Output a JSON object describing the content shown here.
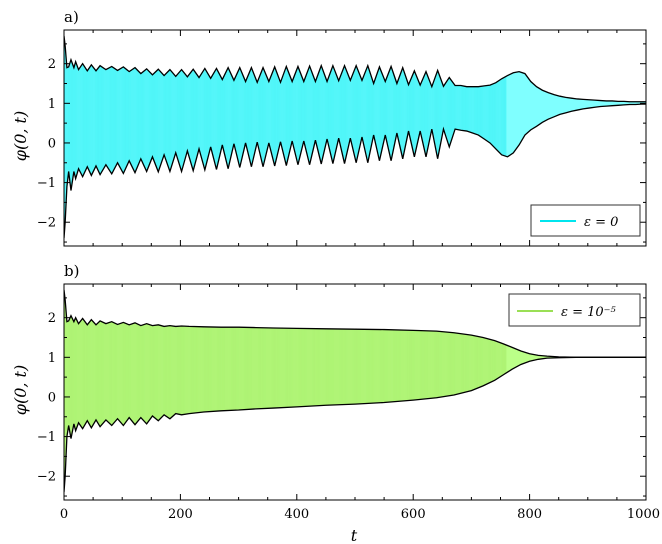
{
  "chart_data": [
    {
      "type": "area",
      "panel_label": "a)",
      "xlabel": "",
      "ylabel": "φ(0, t)",
      "xlim": [
        0,
        1000
      ],
      "ylim": [
        -2.6,
        2.85
      ],
      "x_ticks": [
        0,
        200,
        400,
        600,
        800,
        1000
      ],
      "x_ticks_labeled": false,
      "y_ticks": [
        -2,
        -1,
        0,
        1,
        2
      ],
      "y_tick_labels": [
        "−2",
        "−1",
        "0",
        "1",
        "2"
      ],
      "legend": {
        "label": "ε = 0",
        "position": "bottom-right"
      },
      "fill_color": "#7fffff",
      "line_color": "#00e5ee",
      "x": [
        0,
        2,
        5,
        8,
        12,
        17,
        20,
        25,
        32,
        40,
        47,
        55,
        62,
        72,
        82,
        92,
        102,
        112,
        122,
        132,
        142,
        152,
        162,
        172,
        182,
        192,
        202,
        212,
        222,
        232,
        242,
        252,
        262,
        272,
        282,
        292,
        302,
        312,
        322,
        332,
        342,
        352,
        362,
        372,
        382,
        392,
        402,
        412,
        422,
        432,
        442,
        452,
        462,
        472,
        482,
        492,
        502,
        512,
        522,
        532,
        542,
        552,
        562,
        572,
        582,
        592,
        602,
        612,
        622,
        632,
        642,
        652,
        662,
        672,
        682,
        692,
        702,
        712,
        722,
        732,
        742,
        752,
        762,
        772,
        782,
        792,
        802,
        812,
        822,
        832,
        842,
        852,
        862,
        872,
        882,
        892,
        902,
        912,
        922,
        932,
        942,
        952,
        962,
        972,
        982,
        992,
        1000
      ],
      "upper": [
        2.7,
        2.45,
        1.9,
        1.92,
        2.1,
        1.9,
        2.05,
        1.85,
        2.0,
        1.82,
        1.97,
        1.82,
        1.95,
        1.85,
        1.93,
        1.83,
        1.92,
        1.8,
        1.9,
        1.75,
        1.87,
        1.72,
        1.86,
        1.7,
        1.85,
        1.68,
        1.85,
        1.67,
        1.86,
        1.65,
        1.88,
        1.63,
        1.88,
        1.6,
        1.9,
        1.58,
        1.9,
        1.55,
        1.9,
        1.53,
        1.9,
        1.55,
        1.92,
        1.53,
        1.93,
        1.55,
        1.93,
        1.55,
        1.94,
        1.55,
        1.95,
        1.55,
        1.95,
        1.57,
        1.95,
        1.58,
        1.95,
        1.58,
        1.95,
        1.5,
        1.92,
        1.55,
        1.93,
        1.5,
        1.9,
        1.47,
        1.82,
        1.46,
        1.8,
        1.42,
        1.83,
        1.43,
        1.65,
        1.45,
        1.45,
        1.42,
        1.42,
        1.42,
        1.44,
        1.46,
        1.52,
        1.62,
        1.7,
        1.77,
        1.8,
        1.75,
        1.55,
        1.42,
        1.33,
        1.27,
        1.22,
        1.18,
        1.15,
        1.13,
        1.11,
        1.1,
        1.09,
        1.08,
        1.07,
        1.06,
        1.06,
        1.05,
        1.05,
        1.04,
        1.04,
        1.04,
        1.04
      ],
      "lower": [
        -2.4,
        -2.0,
        -1.1,
        -0.72,
        -1.2,
        -0.72,
        -0.9,
        -0.65,
        -0.85,
        -0.6,
        -0.82,
        -0.58,
        -0.8,
        -0.55,
        -0.78,
        -0.5,
        -0.77,
        -0.45,
        -0.75,
        -0.4,
        -0.72,
        -0.35,
        -0.73,
        -0.3,
        -0.72,
        -0.25,
        -0.72,
        -0.2,
        -0.7,
        -0.15,
        -0.68,
        -0.1,
        -0.67,
        -0.05,
        -0.65,
        -0.02,
        -0.62,
        0.0,
        -0.6,
        0.02,
        -0.6,
        0.0,
        -0.58,
        0.03,
        -0.57,
        0.05,
        -0.55,
        0.05,
        -0.55,
        0.07,
        -0.53,
        0.1,
        -0.52,
        0.12,
        -0.52,
        0.12,
        -0.5,
        0.15,
        -0.5,
        0.2,
        -0.45,
        0.2,
        -0.45,
        0.25,
        -0.4,
        0.3,
        -0.35,
        0.3,
        -0.35,
        0.35,
        -0.4,
        0.35,
        -0.1,
        0.35,
        0.32,
        0.3,
        0.25,
        0.2,
        0.1,
        0.0,
        -0.15,
        -0.3,
        -0.35,
        -0.25,
        -0.05,
        0.2,
        0.33,
        0.42,
        0.52,
        0.6,
        0.66,
        0.72,
        0.76,
        0.8,
        0.83,
        0.86,
        0.88,
        0.9,
        0.92,
        0.93,
        0.94,
        0.95,
        0.96,
        0.97,
        0.97,
        0.98,
        0.98
      ]
    },
    {
      "type": "area",
      "panel_label": "b)",
      "xlabel": "t",
      "ylabel": "φ(0, t)",
      "xlim": [
        0,
        1000
      ],
      "ylim": [
        -2.6,
        2.85
      ],
      "x_ticks": [
        0,
        200,
        400,
        600,
        800,
        1000
      ],
      "x_tick_labels": [
        "0",
        "200",
        "400",
        "600",
        "800",
        "1000"
      ],
      "y_ticks": [
        -2,
        -1,
        0,
        1,
        2
      ],
      "y_tick_labels": [
        "−2",
        "−1",
        "0",
        "1",
        "2"
      ],
      "legend": {
        "label": "ε = 10⁻⁵",
        "position": "top-right"
      },
      "fill_color": "#bbff88",
      "line_color": "#9adf55",
      "x": [
        0,
        2,
        5,
        8,
        12,
        17,
        20,
        25,
        32,
        40,
        47,
        55,
        62,
        72,
        82,
        92,
        102,
        112,
        122,
        132,
        142,
        152,
        162,
        172,
        182,
        192,
        202,
        215,
        240,
        270,
        300,
        330,
        360,
        400,
        450,
        500,
        550,
        600,
        640,
        670,
        700,
        720,
        740,
        755,
        770,
        785,
        800,
        815,
        830,
        850,
        880,
        920,
        960,
        1000
      ],
      "upper": [
        2.7,
        2.45,
        1.9,
        1.92,
        2.05,
        1.9,
        2.0,
        1.85,
        1.98,
        1.82,
        1.95,
        1.82,
        1.92,
        1.85,
        1.9,
        1.83,
        1.88,
        1.82,
        1.87,
        1.8,
        1.85,
        1.8,
        1.82,
        1.78,
        1.8,
        1.78,
        1.79,
        1.78,
        1.77,
        1.76,
        1.76,
        1.75,
        1.74,
        1.73,
        1.72,
        1.71,
        1.7,
        1.68,
        1.66,
        1.62,
        1.56,
        1.5,
        1.42,
        1.34,
        1.25,
        1.16,
        1.09,
        1.05,
        1.03,
        1.01,
        1.0,
        1.0,
        1.0,
        1.0
      ],
      "lower": [
        -2.4,
        -2.0,
        -1.0,
        -0.72,
        -1.05,
        -0.68,
        -0.85,
        -0.65,
        -0.8,
        -0.6,
        -0.78,
        -0.58,
        -0.75,
        -0.58,
        -0.72,
        -0.55,
        -0.72,
        -0.52,
        -0.7,
        -0.52,
        -0.68,
        -0.48,
        -0.6,
        -0.45,
        -0.55,
        -0.42,
        -0.45,
        -0.42,
        -0.38,
        -0.35,
        -0.33,
        -0.3,
        -0.28,
        -0.25,
        -0.21,
        -0.18,
        -0.14,
        -0.08,
        -0.02,
        0.05,
        0.16,
        0.28,
        0.42,
        0.56,
        0.7,
        0.82,
        0.9,
        0.95,
        0.98,
        0.99,
        1.0,
        1.0,
        1.0,
        1.0
      ]
    }
  ]
}
